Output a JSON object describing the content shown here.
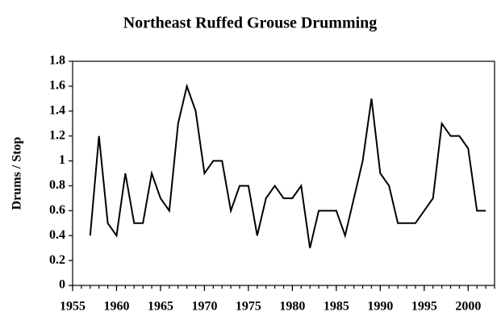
{
  "chart_data": {
    "type": "line",
    "title": "Northeast Ruffed Grouse Drumming",
    "y_label": "Drums / Stop",
    "x": [
      1957,
      1958,
      1959,
      1960,
      1961,
      1962,
      1963,
      1964,
      1965,
      1966,
      1967,
      1968,
      1969,
      1970,
      1971,
      1972,
      1973,
      1974,
      1975,
      1976,
      1977,
      1978,
      1979,
      1980,
      1981,
      1982,
      1983,
      1984,
      1985,
      1986,
      1987,
      1988,
      1989,
      1990,
      1991,
      1992,
      1993,
      1994,
      1995,
      1996,
      1997,
      1998,
      1999,
      2000,
      2001,
      2002
    ],
    "series": [
      {
        "name": "Drums / Stop",
        "color": "#000000",
        "values": [
          0.4,
          1.2,
          0.5,
          0.4,
          0.9,
          0.5,
          0.5,
          0.9,
          0.7,
          0.6,
          1.3,
          1.6,
          1.4,
          0.9,
          1.0,
          1.0,
          0.6,
          0.8,
          0.8,
          0.4,
          0.7,
          0.8,
          0.7,
          0.7,
          0.8,
          0.3,
          0.6,
          0.6,
          0.6,
          0.4,
          0.7,
          1.0,
          1.5,
          0.9,
          0.8,
          0.5,
          0.5,
          0.5,
          0.6,
          0.7,
          1.3,
          1.2,
          1.2,
          1.1,
          0.6,
          0.6
        ]
      }
    ],
    "xlim": [
      1955,
      2003
    ],
    "xticks": [
      1955,
      1960,
      1965,
      1970,
      1975,
      1980,
      1985,
      1990,
      1995,
      2000
    ],
    "ylim": [
      0,
      1.8
    ],
    "yticks": [
      0,
      0.2,
      0.4,
      0.6,
      0.8,
      1,
      1.2,
      1.4,
      1.6,
      1.8
    ],
    "grid": false
  }
}
